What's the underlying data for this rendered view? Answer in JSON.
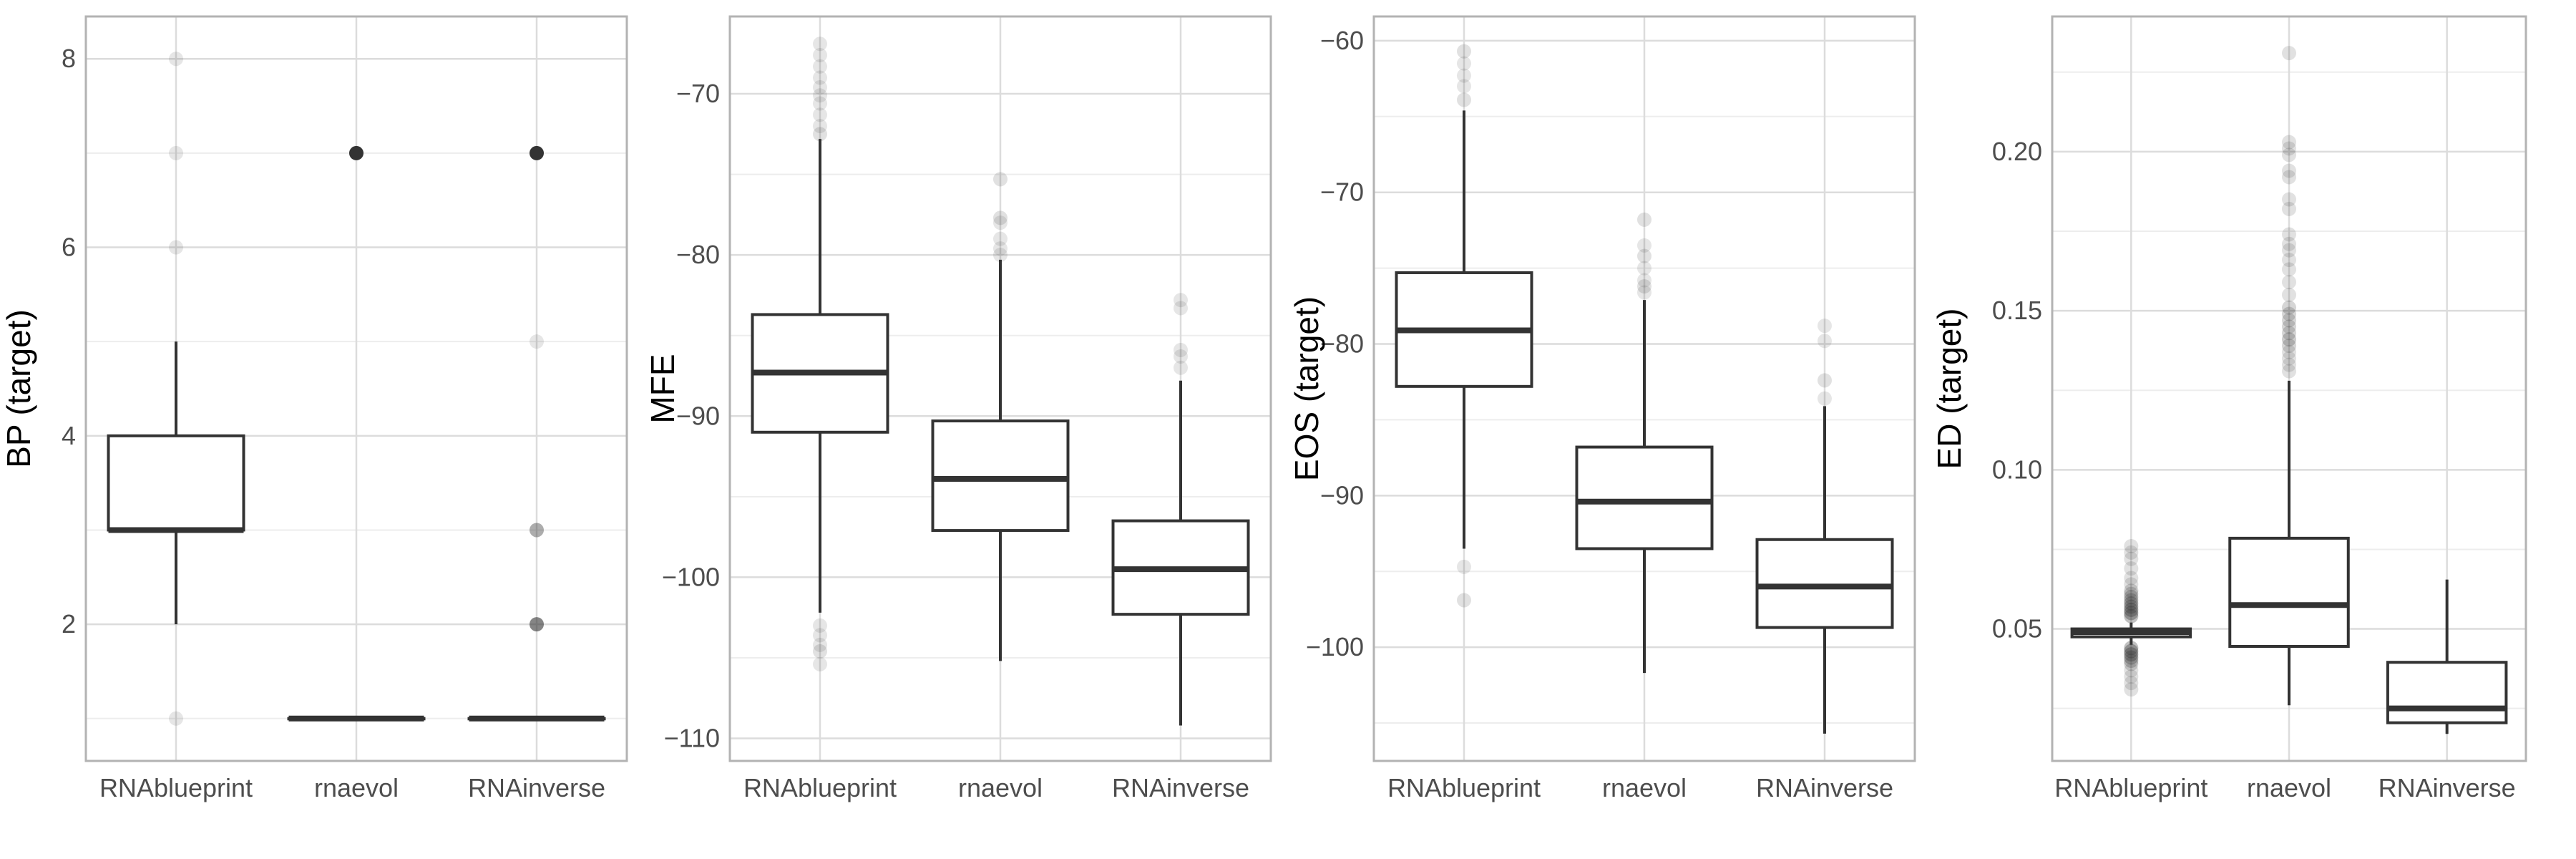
{
  "chart_data": [
    {
      "type": "box",
      "ylabel": "BP (target)",
      "xlabel": "",
      "categories": [
        "RNAblueprint",
        "rnaevol",
        "RNAinverse"
      ],
      "ylim": [
        0.55,
        8.45
      ],
      "yticks": [
        2,
        4,
        6,
        8
      ],
      "yticklabels": [
        "2",
        "4",
        "6",
        "8"
      ],
      "grid": true,
      "boxes": [
        {
          "category": "RNAblueprint",
          "lower_whisker": 2,
          "q1": 3,
          "median": 3,
          "q3": 4,
          "upper_whisker": 5,
          "outliers": [
            {
              "y": 1,
              "alpha": 0.12
            },
            {
              "y": 6,
              "alpha": 0.12
            },
            {
              "y": 7,
              "alpha": 0.12
            },
            {
              "y": 8,
              "alpha": 0.12
            }
          ]
        },
        {
          "category": "rnaevol",
          "lower_whisker": 1,
          "q1": 1,
          "median": 1,
          "q3": 1,
          "upper_whisker": 1,
          "outliers": [
            {
              "y": 7,
              "alpha": 1.0
            }
          ]
        },
        {
          "category": "RNAinverse",
          "lower_whisker": 1,
          "q1": 1,
          "median": 1,
          "q3": 1,
          "upper_whisker": 1,
          "outliers": [
            {
              "y": 2,
              "alpha": 0.6
            },
            {
              "y": 3,
              "alpha": 0.4
            },
            {
              "y": 5,
              "alpha": 0.12
            },
            {
              "y": 7,
              "alpha": 1.0
            }
          ]
        }
      ]
    },
    {
      "type": "box",
      "ylabel": "MFE",
      "xlabel": "",
      "categories": [
        "RNAblueprint",
        "rnaevol",
        "RNAinverse"
      ],
      "ylim": [
        -111.4,
        -65.2
      ],
      "yticks": [
        -110,
        -100,
        -90,
        -80,
        -70
      ],
      "yticklabels": [
        "−110",
        "−100",
        "−90",
        "−80",
        "−70"
      ],
      "grid": true,
      "boxes": [
        {
          "category": "RNAblueprint",
          "lower_whisker": -102.2,
          "q1": -91.0,
          "median": -87.3,
          "q3": -83.7,
          "upper_whisker": -72.8,
          "outliers": [
            {
              "y": -66.9,
              "alpha": 0.12
            },
            {
              "y": -67.6,
              "alpha": 0.12
            },
            {
              "y": -68.3,
              "alpha": 0.12
            },
            {
              "y": -69.0,
              "alpha": 0.12
            },
            {
              "y": -69.6,
              "alpha": 0.12
            },
            {
              "y": -70.1,
              "alpha": 0.12
            },
            {
              "y": -70.6,
              "alpha": 0.12
            },
            {
              "y": -71.3,
              "alpha": 0.12
            },
            {
              "y": -72.0,
              "alpha": 0.12
            },
            {
              "y": -72.5,
              "alpha": 0.15
            },
            {
              "y": -103.0,
              "alpha": 0.12
            },
            {
              "y": -103.6,
              "alpha": 0.12
            },
            {
              "y": -104.2,
              "alpha": 0.12
            },
            {
              "y": -104.6,
              "alpha": 0.15
            },
            {
              "y": -105.4,
              "alpha": 0.12
            }
          ]
        },
        {
          "category": "rnaevol",
          "lower_whisker": -105.2,
          "q1": -97.1,
          "median": -93.9,
          "q3": -90.3,
          "upper_whisker": -80.3,
          "outliers": [
            {
              "y": -75.3,
              "alpha": 0.15
            },
            {
              "y": -77.7,
              "alpha": 0.15
            },
            {
              "y": -78.0,
              "alpha": 0.12
            },
            {
              "y": -79.0,
              "alpha": 0.12
            },
            {
              "y": -79.6,
              "alpha": 0.12
            },
            {
              "y": -80.0,
              "alpha": 0.12
            }
          ]
        },
        {
          "category": "RNAinverse",
          "lower_whisker": -109.2,
          "q1": -102.3,
          "median": -99.5,
          "q3": -96.5,
          "upper_whisker": -87.8,
          "outliers": [
            {
              "y": -82.8,
              "alpha": 0.12
            },
            {
              "y": -83.3,
              "alpha": 0.12
            },
            {
              "y": -85.9,
              "alpha": 0.12
            },
            {
              "y": -86.3,
              "alpha": 0.12
            },
            {
              "y": -87.0,
              "alpha": 0.12
            }
          ]
        }
      ]
    },
    {
      "type": "box",
      "ylabel": "EOS (target)",
      "xlabel": "",
      "categories": [
        "RNAblueprint",
        "rnaevol",
        "RNAinverse"
      ],
      "ylim": [
        -107.5,
        -58.4
      ],
      "yticks": [
        -100,
        -90,
        -80,
        -70,
        -60
      ],
      "yticklabels": [
        "−100",
        "−90",
        "−80",
        "−70",
        "−60"
      ],
      "grid": true,
      "boxes": [
        {
          "category": "RNAblueprint",
          "lower_whisker": -93.5,
          "q1": -82.8,
          "median": -79.1,
          "q3": -75.3,
          "upper_whisker": -64.6,
          "outliers": [
            {
              "y": -60.7,
              "alpha": 0.15
            },
            {
              "y": -61.5,
              "alpha": 0.12
            },
            {
              "y": -62.3,
              "alpha": 0.12
            },
            {
              "y": -63.0,
              "alpha": 0.12
            },
            {
              "y": -63.9,
              "alpha": 0.15
            },
            {
              "y": -94.7,
              "alpha": 0.12
            },
            {
              "y": -96.9,
              "alpha": 0.15
            }
          ]
        },
        {
          "category": "rnaevol",
          "lower_whisker": -101.7,
          "q1": -93.5,
          "median": -90.4,
          "q3": -86.8,
          "upper_whisker": -77.1,
          "outliers": [
            {
              "y": -71.8,
              "alpha": 0.15
            },
            {
              "y": -73.5,
              "alpha": 0.12
            },
            {
              "y": -74.2,
              "alpha": 0.15
            },
            {
              "y": -75.0,
              "alpha": 0.12
            },
            {
              "y": -75.8,
              "alpha": 0.12
            },
            {
              "y": -76.2,
              "alpha": 0.15
            },
            {
              "y": -76.6,
              "alpha": 0.12
            }
          ]
        },
        {
          "category": "RNAinverse",
          "lower_whisker": -105.7,
          "q1": -98.7,
          "median": -96.0,
          "q3": -92.9,
          "upper_whisker": -84.1,
          "outliers": [
            {
              "y": -78.8,
              "alpha": 0.12
            },
            {
              "y": -79.8,
              "alpha": 0.12
            },
            {
              "y": -82.4,
              "alpha": 0.15
            },
            {
              "y": -83.6,
              "alpha": 0.12
            }
          ]
        }
      ]
    },
    {
      "type": "box",
      "ylabel": "ED (target)",
      "xlabel": "",
      "categories": [
        "RNAblueprint",
        "rnaevol",
        "RNAinverse"
      ],
      "ylim": [
        0.0085,
        0.2425
      ],
      "yticks": [
        0.05,
        0.1,
        0.15,
        0.2
      ],
      "yticklabels": [
        "0.05",
        "0.10",
        "0.15",
        "0.20"
      ],
      "grid": true,
      "boxes": [
        {
          "category": "RNAblueprint",
          "lower_whisker": 0.045,
          "q1": 0.0475,
          "median": 0.049,
          "q3": 0.05,
          "upper_whisker": 0.052,
          "outliers": [
            {
              "y": 0.031,
              "alpha": 0.15
            },
            {
              "y": 0.033,
              "alpha": 0.15
            },
            {
              "y": 0.035,
              "alpha": 0.15
            },
            {
              "y": 0.037,
              "alpha": 0.15
            },
            {
              "y": 0.039,
              "alpha": 0.2
            },
            {
              "y": 0.04,
              "alpha": 0.25
            },
            {
              "y": 0.041,
              "alpha": 0.3
            },
            {
              "y": 0.042,
              "alpha": 0.35
            },
            {
              "y": 0.043,
              "alpha": 0.35
            },
            {
              "y": 0.044,
              "alpha": 0.3
            },
            {
              "y": 0.054,
              "alpha": 0.3
            },
            {
              "y": 0.055,
              "alpha": 0.35
            },
            {
              "y": 0.056,
              "alpha": 0.35
            },
            {
              "y": 0.057,
              "alpha": 0.3
            },
            {
              "y": 0.058,
              "alpha": 0.3
            },
            {
              "y": 0.059,
              "alpha": 0.25
            },
            {
              "y": 0.06,
              "alpha": 0.25
            },
            {
              "y": 0.061,
              "alpha": 0.2
            },
            {
              "y": 0.062,
              "alpha": 0.2
            },
            {
              "y": 0.064,
              "alpha": 0.15
            },
            {
              "y": 0.066,
              "alpha": 0.15
            },
            {
              "y": 0.069,
              "alpha": 0.15
            },
            {
              "y": 0.072,
              "alpha": 0.15
            },
            {
              "y": 0.074,
              "alpha": 0.15
            },
            {
              "y": 0.076,
              "alpha": 0.15
            }
          ]
        },
        {
          "category": "rnaevol",
          "lower_whisker": 0.026,
          "q1": 0.0445,
          "median": 0.0575,
          "q3": 0.0785,
          "upper_whisker": 0.128,
          "outliers": [
            {
              "y": 0.131,
              "alpha": 0.15
            },
            {
              "y": 0.133,
              "alpha": 0.15
            },
            {
              "y": 0.135,
              "alpha": 0.15
            },
            {
              "y": 0.137,
              "alpha": 0.15
            },
            {
              "y": 0.139,
              "alpha": 0.2
            },
            {
              "y": 0.141,
              "alpha": 0.25
            },
            {
              "y": 0.143,
              "alpha": 0.2
            },
            {
              "y": 0.145,
              "alpha": 0.2
            },
            {
              "y": 0.147,
              "alpha": 0.2
            },
            {
              "y": 0.149,
              "alpha": 0.2
            },
            {
              "y": 0.151,
              "alpha": 0.2
            },
            {
              "y": 0.155,
              "alpha": 0.15
            },
            {
              "y": 0.159,
              "alpha": 0.15
            },
            {
              "y": 0.163,
              "alpha": 0.15
            },
            {
              "y": 0.166,
              "alpha": 0.15
            },
            {
              "y": 0.169,
              "alpha": 0.15
            },
            {
              "y": 0.171,
              "alpha": 0.15
            },
            {
              "y": 0.174,
              "alpha": 0.15
            },
            {
              "y": 0.182,
              "alpha": 0.15
            },
            {
              "y": 0.185,
              "alpha": 0.15
            },
            {
              "y": 0.192,
              "alpha": 0.15
            },
            {
              "y": 0.194,
              "alpha": 0.15
            },
            {
              "y": 0.199,
              "alpha": 0.15
            },
            {
              "y": 0.201,
              "alpha": 0.15
            },
            {
              "y": 0.203,
              "alpha": 0.15
            },
            {
              "y": 0.231,
              "alpha": 0.15
            }
          ]
        },
        {
          "category": "RNAinverse",
          "lower_whisker": 0.017,
          "q1": 0.0205,
          "median": 0.025,
          "q3": 0.0395,
          "upper_whisker": 0.0655,
          "outliers": []
        }
      ]
    }
  ]
}
